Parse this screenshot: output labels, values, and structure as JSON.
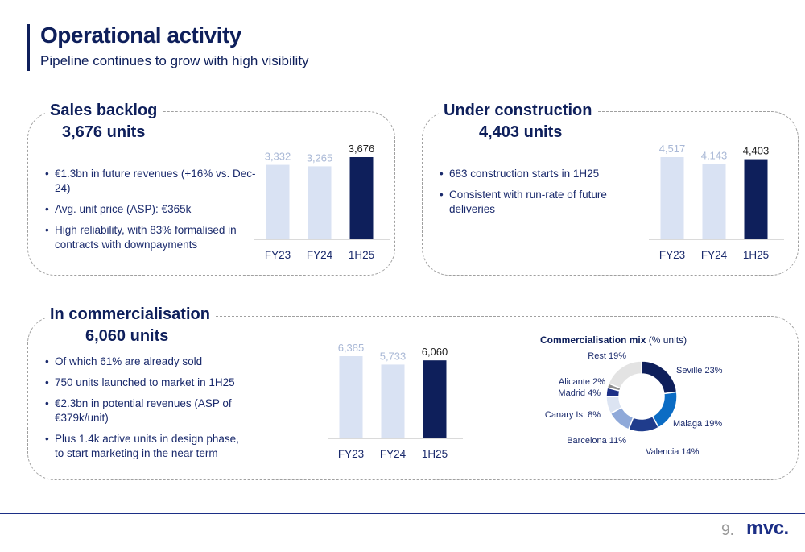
{
  "header": {
    "title": "Operational activity",
    "subtitle": "Pipeline continues to grow with high visibility"
  },
  "sales_backlog": {
    "title": "Sales backlog",
    "units": "3,676 units",
    "bullets": [
      "€1.3bn in future revenues (+16% vs. Dec-24)",
      "Avg. unit price (ASP): €365k",
      "High reliability, with 83% formalised in contracts with downpayments"
    ]
  },
  "under_construction": {
    "title": "Under construction",
    "units": "4,403 units",
    "bullets": [
      "683 construction starts in 1H25",
      "Consistent with run-rate of future deliveries"
    ]
  },
  "in_commercialisation": {
    "title": "In commercialisation",
    "units": "6,060 units",
    "bullets": [
      "Of which 61% are already sold",
      "750 units launched to market in 1H25",
      "€2.3bn in potential revenues (ASP of €379k/unit)",
      "Plus 1.4k active units in design phase, to start marketing in the near term"
    ]
  },
  "mix": {
    "title_bold": "Commercialisation mix",
    "title_rest": " (% units)"
  },
  "colors": {
    "dark_navy": "#0e1f5b",
    "light_bar": "#d9e2f3",
    "light_label": "#a9b8d6"
  },
  "footer": {
    "page_number": "9.",
    "logo": "mvc."
  },
  "chart_data": [
    {
      "type": "bar",
      "id": "sales-backlog",
      "categories": [
        "FY23",
        "FY24",
        "1H25"
      ],
      "values": [
        3332,
        3265,
        3676
      ],
      "value_labels": [
        "3,332",
        "3,265",
        "3,676"
      ]
    },
    {
      "type": "bar",
      "id": "under-construction",
      "categories": [
        "FY23",
        "FY24",
        "1H25"
      ],
      "values": [
        4517,
        4143,
        4403
      ],
      "value_labels": [
        "4,517",
        "4,143",
        "4,403"
      ]
    },
    {
      "type": "bar",
      "id": "in-commercialisation",
      "categories": [
        "FY23",
        "FY24",
        "1H25"
      ],
      "values": [
        6385,
        5733,
        6060
      ],
      "value_labels": [
        "6,385",
        "5,733",
        "6,060"
      ]
    },
    {
      "type": "pie",
      "id": "commercialisation-mix",
      "title": "Commercialisation mix (% units)",
      "slices": [
        {
          "label": "Seville 23%",
          "value": 23,
          "color": "#0e1f5b"
        },
        {
          "label": "Malaga 19%",
          "value": 19,
          "color": "#0b6cc4"
        },
        {
          "label": "Valencia 14%",
          "value": 14,
          "color": "#1f3c8c"
        },
        {
          "label": "Barcelona 11%",
          "value": 11,
          "color": "#8fa9d9"
        },
        {
          "label": "Canary Is. 8%",
          "value": 8,
          "color": "#dce4f2"
        },
        {
          "label": "Madrid 4%",
          "value": 4,
          "color": "#1c2f86"
        },
        {
          "label": "Alicante 2%",
          "value": 2,
          "color": "#8c8c8c"
        },
        {
          "label": "Rest 19%",
          "value": 19,
          "color": "#e3e3e3"
        }
      ]
    }
  ]
}
